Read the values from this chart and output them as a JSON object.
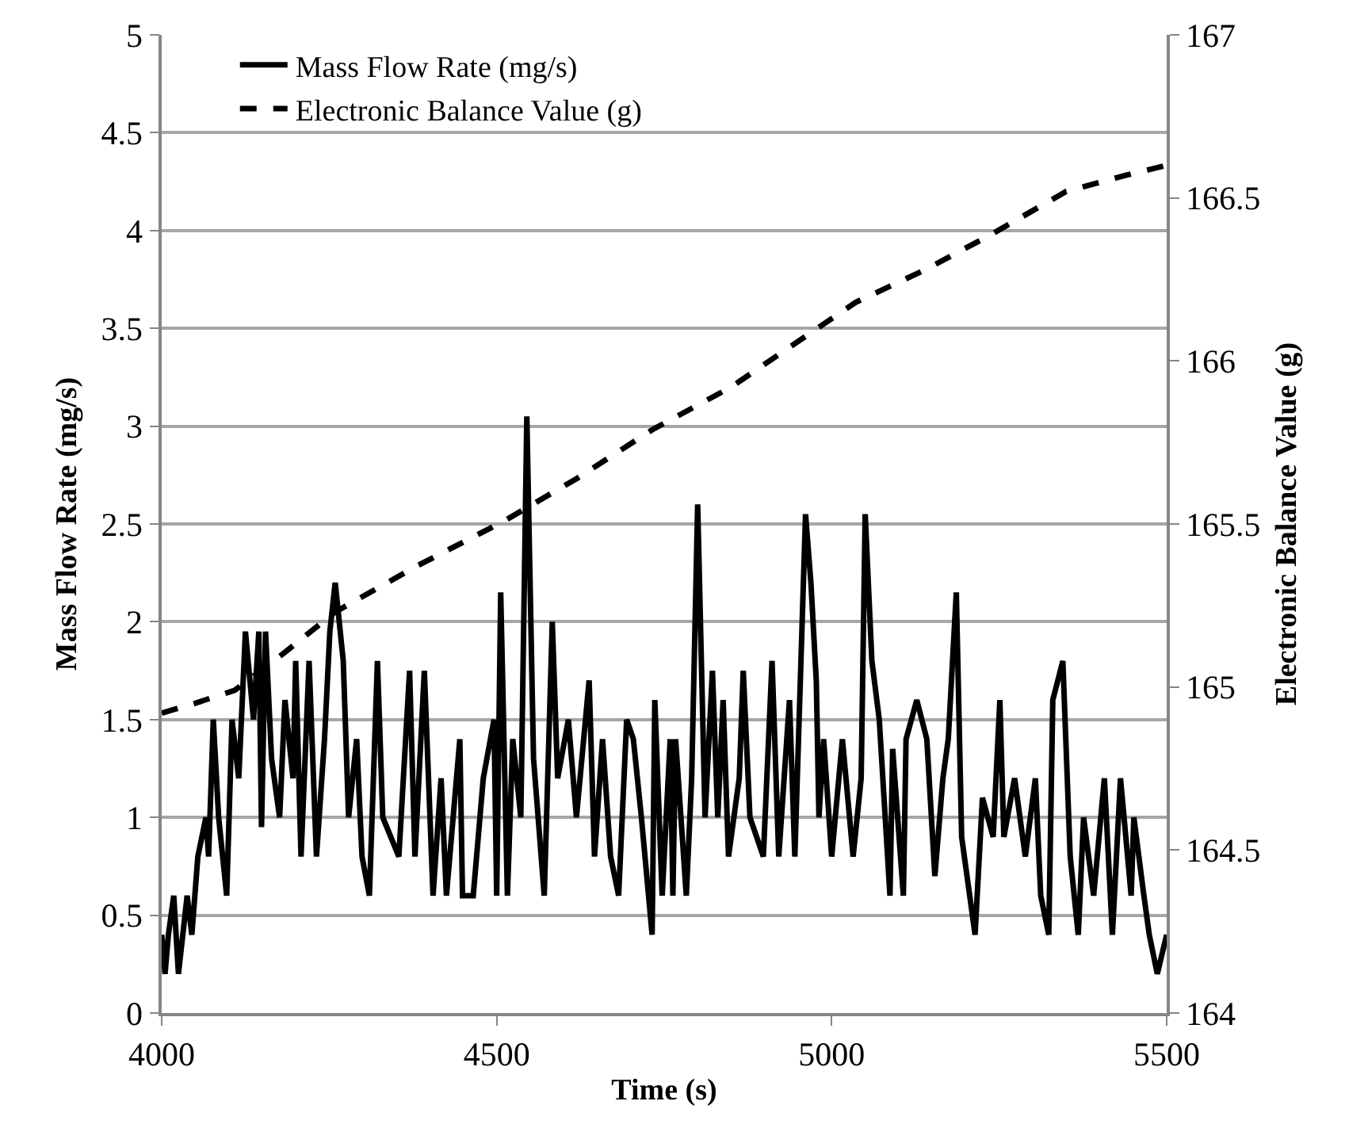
{
  "chart_data": {
    "type": "line",
    "xlabel": "Time (s)",
    "ylabel": "Mass Flow Rate (mg/s)",
    "y2label": "Electronic Balance Value (g)",
    "xlim": [
      4000,
      5500
    ],
    "xticks": [
      4000,
      4500,
      5000,
      5500
    ],
    "ylim": [
      0,
      5
    ],
    "yticks": [
      0,
      0.5,
      1,
      1.5,
      2,
      2.5,
      3,
      3.5,
      4,
      4.5,
      5
    ],
    "y2lim": [
      164,
      167
    ],
    "y2ticks": [
      164,
      164.5,
      165,
      165.5,
      166,
      166.5,
      167
    ],
    "grid": "y",
    "legend": "top left",
    "marker": "none",
    "series": [
      {
        "name": "Mass Flow Rate (mg/s)",
        "color": "#000000",
        "line_style": "solid",
        "x": [
          4000,
          4005,
          4010,
          4018,
          4025,
          4038,
          4045,
          4054,
          4066,
          4070,
          4077,
          4085,
          4097,
          4105,
          4115,
          4125,
          4137,
          4145,
          4149,
          4155,
          4164,
          4176,
          4184,
          4196,
          4200,
          4208,
          4220,
          4231,
          4243,
          4251,
          4259,
          4271,
          4279,
          4291,
          4299,
          4310,
          4322,
          4330,
          4354,
          4370,
          4378,
          4392,
          4405,
          4417,
          4425,
          4445,
          4449,
          4465,
          4480,
          4496,
          4500,
          4506,
          4516,
          4524,
          4536,
          4545,
          4555,
          4571,
          4583,
          4591,
          4607,
          4619,
          4638,
          4646,
          4658,
          4670,
          4682,
          4694,
          4704,
          4716,
          4732,
          4736,
          4747,
          4759,
          4763,
          4767,
          4783,
          4791,
          4800,
          4811,
          4822,
          4830,
          4838,
          4846,
          4862,
          4868,
          4878,
          4898,
          4911,
          4921,
          4937,
          4945,
          4961,
          4969,
          4977,
          4981,
          4988,
          5000,
          5016,
          5032,
          5044,
          5050,
          5060,
          5071,
          5087,
          5091,
          5107,
          5111,
          5127,
          5142,
          5154,
          5166,
          5174,
          5186,
          5194,
          5214,
          5225,
          5241,
          5251,
          5257,
          5273,
          5289,
          5304,
          5312,
          5324,
          5330,
          5345,
          5356,
          5368,
          5376,
          5391,
          5407,
          5419,
          5431,
          5447,
          5451,
          5466,
          5474,
          5486,
          5500
        ],
        "values": [
          0.4,
          0.2,
          0.4,
          0.6,
          0.2,
          0.6,
          0.4,
          0.8,
          1.0,
          0.8,
          1.5,
          1.0,
          0.6,
          1.5,
          1.2,
          1.95,
          1.5,
          1.95,
          0.95,
          1.95,
          1.3,
          1.0,
          1.6,
          1.2,
          1.8,
          0.8,
          1.8,
          0.8,
          1.4,
          1.95,
          2.2,
          1.8,
          1.0,
          1.4,
          0.8,
          0.6,
          1.8,
          1.0,
          0.8,
          1.75,
          0.8,
          1.75,
          0.6,
          1.2,
          0.6,
          1.4,
          0.6,
          0.6,
          1.2,
          1.5,
          0.6,
          2.15,
          0.6,
          1.4,
          1.0,
          3.05,
          1.3,
          0.6,
          2.0,
          1.2,
          1.5,
          1.0,
          1.7,
          0.8,
          1.4,
          0.8,
          0.6,
          1.5,
          1.4,
          1.0,
          0.4,
          1.6,
          0.6,
          1.4,
          0.6,
          1.4,
          0.6,
          1.2,
          2.6,
          1.0,
          1.75,
          1.0,
          1.6,
          0.8,
          1.2,
          1.75,
          1.0,
          0.8,
          1.8,
          0.8,
          1.6,
          0.8,
          2.55,
          2.2,
          1.7,
          1.0,
          1.4,
          0.8,
          1.4,
          0.8,
          1.2,
          2.55,
          1.8,
          1.5,
          0.6,
          1.35,
          0.6,
          1.4,
          1.6,
          1.4,
          0.7,
          1.2,
          1.4,
          2.15,
          0.9,
          0.4,
          1.1,
          0.9,
          1.6,
          0.9,
          1.2,
          0.8,
          1.2,
          0.6,
          0.4,
          1.6,
          1.8,
          0.8,
          0.4,
          1.0,
          0.6,
          1.2,
          0.4,
          1.2,
          0.6,
          1.0,
          0.6,
          0.4,
          0.2,
          0.4
        ]
      },
      {
        "name": "Electronic Balance Value (g)",
        "color": "#000000",
        "line_style": "dashed",
        "axis": "y2",
        "x": [
          4000,
          4050,
          4109,
          4180,
          4259,
          4380,
          4512,
          4620,
          4733,
          4850,
          4950,
          5036,
          5140,
          5240,
          5350,
          5440,
          5500
        ],
        "values": [
          164.92,
          164.95,
          164.99,
          165.1,
          165.23,
          165.37,
          165.51,
          165.64,
          165.79,
          165.92,
          166.06,
          166.18,
          166.28,
          166.39,
          166.52,
          166.57,
          166.6
        ]
      }
    ]
  }
}
